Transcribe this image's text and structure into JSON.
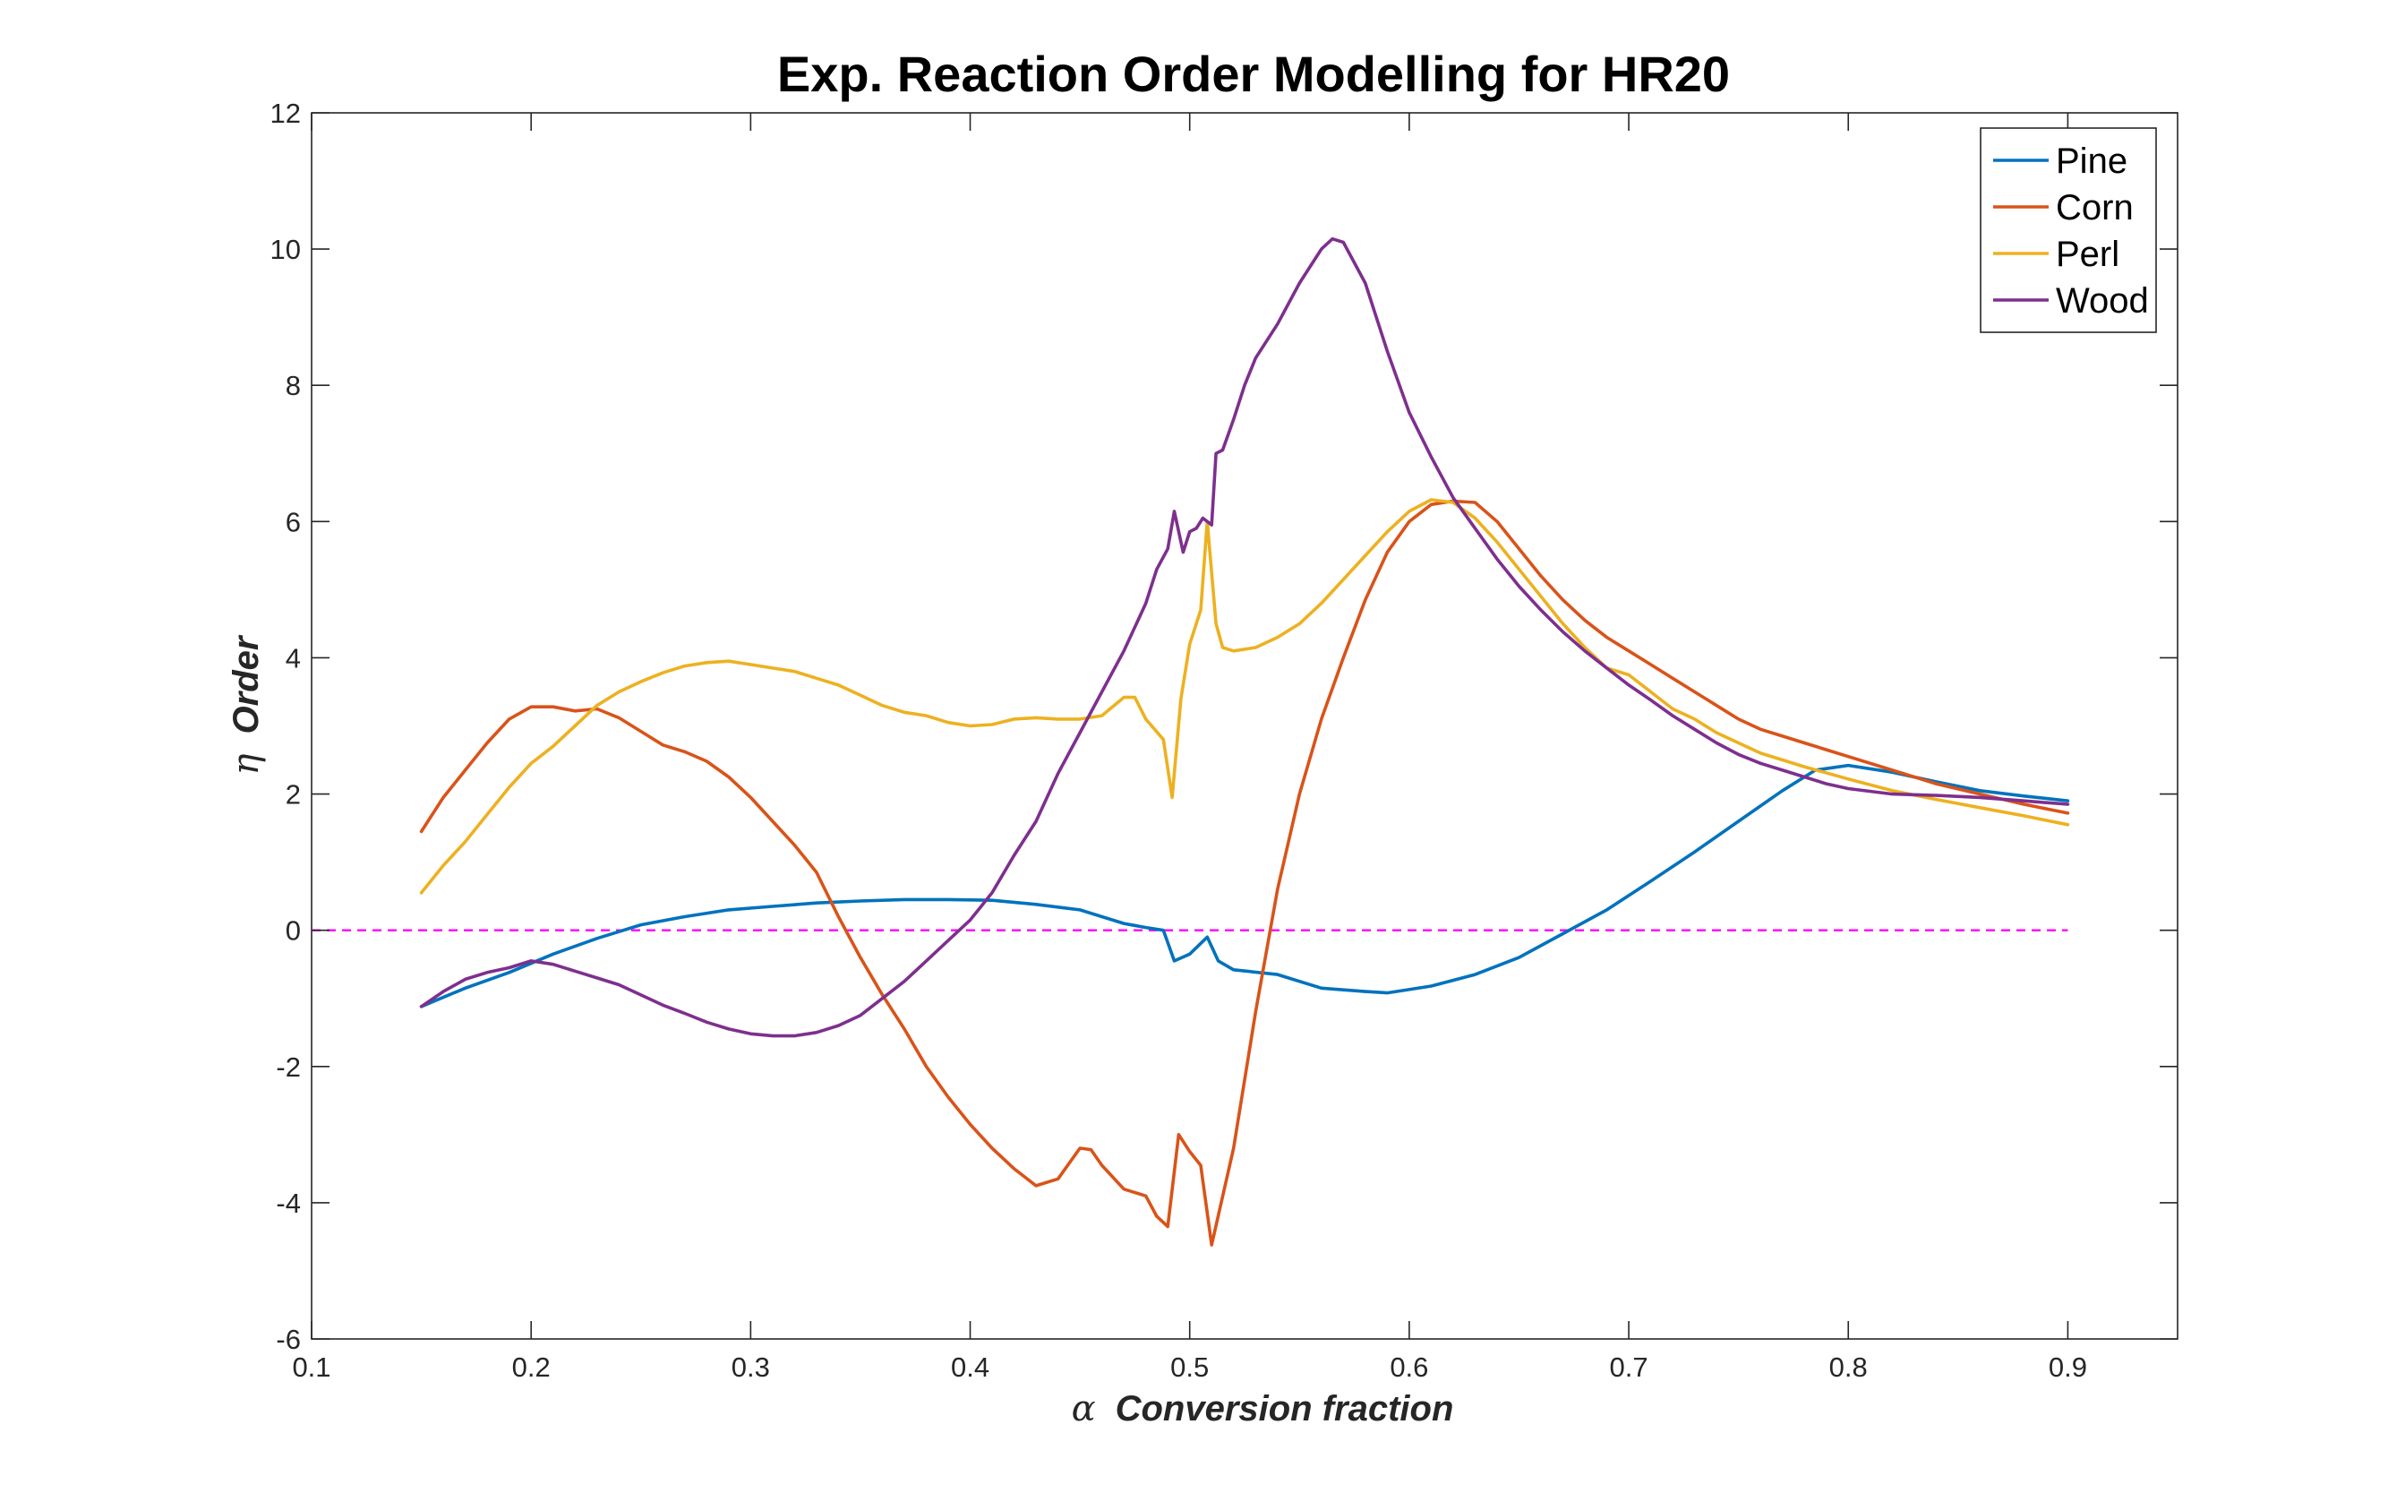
{
  "chart_data": {
    "type": "line",
    "title": "Exp. Reaction Order Modelling for HR20",
    "xlabel_symbol": "α",
    "xlabel": "Conversion fraction",
    "ylabel_symbol": "η",
    "ylabel": "Order",
    "xlim": [
      0.1,
      0.95
    ],
    "ylim": [
      -6,
      12
    ],
    "xticks": [
      0.1,
      0.2,
      0.3,
      0.4,
      0.5,
      0.6,
      0.7,
      0.8,
      0.9
    ],
    "xtick_labels": [
      "0.1",
      "0.2",
      "0.3",
      "0.4",
      "0.5",
      "0.6",
      "0.7",
      "0.8",
      "0.9"
    ],
    "yticks": [
      -6,
      -4,
      -2,
      0,
      2,
      4,
      6,
      8,
      10,
      12
    ],
    "ytick_labels": [
      "-6",
      "-4",
      "-2",
      "0",
      "2",
      "4",
      "6",
      "8",
      "10",
      "12"
    ],
    "grid": false,
    "legend_position": "top-right",
    "reference_line": {
      "y": 0,
      "x": [
        0.1,
        0.9
      ],
      "color": "#ff00ff",
      "style": "dashed"
    },
    "series": [
      {
        "name": "Pine",
        "color": "#0072bd",
        "points": [
          [
            0.15,
            -1.12
          ],
          [
            0.17,
            -0.85
          ],
          [
            0.19,
            -0.62
          ],
          [
            0.21,
            -0.35
          ],
          [
            0.23,
            -0.12
          ],
          [
            0.25,
            0.08
          ],
          [
            0.27,
            0.2
          ],
          [
            0.29,
            0.3
          ],
          [
            0.31,
            0.35
          ],
          [
            0.33,
            0.4
          ],
          [
            0.35,
            0.43
          ],
          [
            0.37,
            0.45
          ],
          [
            0.39,
            0.45
          ],
          [
            0.41,
            0.44
          ],
          [
            0.43,
            0.38
          ],
          [
            0.45,
            0.3
          ],
          [
            0.47,
            0.1
          ],
          [
            0.48,
            0.04
          ],
          [
            0.488,
            0.0
          ],
          [
            0.493,
            -0.45
          ],
          [
            0.5,
            -0.35
          ],
          [
            0.508,
            -0.1
          ],
          [
            0.513,
            -0.45
          ],
          [
            0.52,
            -0.58
          ],
          [
            0.54,
            -0.65
          ],
          [
            0.56,
            -0.85
          ],
          [
            0.58,
            -0.9
          ],
          [
            0.59,
            -0.92
          ],
          [
            0.61,
            -0.82
          ],
          [
            0.63,
            -0.65
          ],
          [
            0.65,
            -0.4
          ],
          [
            0.67,
            -0.05
          ],
          [
            0.69,
            0.3
          ],
          [
            0.71,
            0.72
          ],
          [
            0.73,
            1.15
          ],
          [
            0.75,
            1.6
          ],
          [
            0.77,
            2.05
          ],
          [
            0.785,
            2.35
          ],
          [
            0.8,
            2.42
          ],
          [
            0.82,
            2.32
          ],
          [
            0.84,
            2.18
          ],
          [
            0.86,
            2.05
          ],
          [
            0.88,
            1.97
          ],
          [
            0.9,
            1.9
          ]
        ]
      },
      {
        "name": "Corn",
        "color": "#d95319",
        "points": [
          [
            0.15,
            1.45
          ],
          [
            0.16,
            1.95
          ],
          [
            0.17,
            2.35
          ],
          [
            0.18,
            2.75
          ],
          [
            0.19,
            3.1
          ],
          [
            0.2,
            3.28
          ],
          [
            0.21,
            3.28
          ],
          [
            0.22,
            3.22
          ],
          [
            0.23,
            3.25
          ],
          [
            0.24,
            3.12
          ],
          [
            0.25,
            2.92
          ],
          [
            0.26,
            2.72
          ],
          [
            0.27,
            2.62
          ],
          [
            0.28,
            2.48
          ],
          [
            0.29,
            2.25
          ],
          [
            0.3,
            1.95
          ],
          [
            0.31,
            1.6
          ],
          [
            0.32,
            1.25
          ],
          [
            0.33,
            0.85
          ],
          [
            0.34,
            0.2
          ],
          [
            0.35,
            -0.4
          ],
          [
            0.36,
            -0.95
          ],
          [
            0.37,
            -1.45
          ],
          [
            0.38,
            -2.0
          ],
          [
            0.39,
            -2.45
          ],
          [
            0.4,
            -2.85
          ],
          [
            0.41,
            -3.2
          ],
          [
            0.42,
            -3.5
          ],
          [
            0.43,
            -3.75
          ],
          [
            0.44,
            -3.65
          ],
          [
            0.45,
            -3.2
          ],
          [
            0.455,
            -3.22
          ],
          [
            0.46,
            -3.45
          ],
          [
            0.47,
            -3.8
          ],
          [
            0.48,
            -3.9
          ],
          [
            0.485,
            -4.2
          ],
          [
            0.49,
            -4.35
          ],
          [
            0.495,
            -3.0
          ],
          [
            0.5,
            -3.25
          ],
          [
            0.505,
            -3.45
          ],
          [
            0.51,
            -4.62
          ],
          [
            0.52,
            -3.2
          ],
          [
            0.53,
            -1.2
          ],
          [
            0.54,
            0.6
          ],
          [
            0.55,
            2.0
          ],
          [
            0.56,
            3.1
          ],
          [
            0.57,
            4.0
          ],
          [
            0.58,
            4.85
          ],
          [
            0.59,
            5.55
          ],
          [
            0.6,
            6.0
          ],
          [
            0.61,
            6.25
          ],
          [
            0.62,
            6.3
          ],
          [
            0.63,
            6.28
          ],
          [
            0.64,
            6.0
          ],
          [
            0.65,
            5.6
          ],
          [
            0.66,
            5.2
          ],
          [
            0.67,
            4.85
          ],
          [
            0.68,
            4.55
          ],
          [
            0.69,
            4.3
          ],
          [
            0.7,
            4.1
          ],
          [
            0.71,
            3.9
          ],
          [
            0.72,
            3.7
          ],
          [
            0.73,
            3.5
          ],
          [
            0.74,
            3.3
          ],
          [
            0.75,
            3.1
          ],
          [
            0.76,
            2.95
          ],
          [
            0.77,
            2.85
          ],
          [
            0.78,
            2.75
          ],
          [
            0.79,
            2.65
          ],
          [
            0.8,
            2.55
          ],
          [
            0.82,
            2.35
          ],
          [
            0.84,
            2.15
          ],
          [
            0.86,
            2.0
          ],
          [
            0.88,
            1.85
          ],
          [
            0.9,
            1.72
          ]
        ]
      },
      {
        "name": "Perl",
        "color": "#edb120",
        "points": [
          [
            0.15,
            0.55
          ],
          [
            0.16,
            0.95
          ],
          [
            0.17,
            1.3
          ],
          [
            0.18,
            1.7
          ],
          [
            0.19,
            2.1
          ],
          [
            0.2,
            2.45
          ],
          [
            0.21,
            2.7
          ],
          [
            0.22,
            3.0
          ],
          [
            0.23,
            3.3
          ],
          [
            0.24,
            3.5
          ],
          [
            0.25,
            3.65
          ],
          [
            0.26,
            3.78
          ],
          [
            0.27,
            3.88
          ],
          [
            0.28,
            3.93
          ],
          [
            0.29,
            3.95
          ],
          [
            0.3,
            3.9
          ],
          [
            0.31,
            3.85
          ],
          [
            0.32,
            3.8
          ],
          [
            0.33,
            3.7
          ],
          [
            0.34,
            3.6
          ],
          [
            0.35,
            3.45
          ],
          [
            0.36,
            3.3
          ],
          [
            0.37,
            3.2
          ],
          [
            0.38,
            3.15
          ],
          [
            0.39,
            3.05
          ],
          [
            0.4,
            3.0
          ],
          [
            0.41,
            3.02
          ],
          [
            0.42,
            3.1
          ],
          [
            0.43,
            3.12
          ],
          [
            0.44,
            3.1
          ],
          [
            0.45,
            3.1
          ],
          [
            0.46,
            3.15
          ],
          [
            0.47,
            3.42
          ],
          [
            0.475,
            3.42
          ],
          [
            0.48,
            3.1
          ],
          [
            0.488,
            2.8
          ],
          [
            0.492,
            1.95
          ],
          [
            0.496,
            3.4
          ],
          [
            0.5,
            4.2
          ],
          [
            0.505,
            4.7
          ],
          [
            0.508,
            6.0
          ],
          [
            0.512,
            4.5
          ],
          [
            0.515,
            4.15
          ],
          [
            0.52,
            4.1
          ],
          [
            0.53,
            4.15
          ],
          [
            0.54,
            4.3
          ],
          [
            0.55,
            4.5
          ],
          [
            0.56,
            4.8
          ],
          [
            0.57,
            5.15
          ],
          [
            0.58,
            5.5
          ],
          [
            0.59,
            5.85
          ],
          [
            0.6,
            6.15
          ],
          [
            0.61,
            6.32
          ],
          [
            0.62,
            6.28
          ],
          [
            0.63,
            6.05
          ],
          [
            0.64,
            5.7
          ],
          [
            0.65,
            5.3
          ],
          [
            0.66,
            4.9
          ],
          [
            0.67,
            4.5
          ],
          [
            0.68,
            4.15
          ],
          [
            0.69,
            3.85
          ],
          [
            0.7,
            3.75
          ],
          [
            0.71,
            3.5
          ],
          [
            0.72,
            3.25
          ],
          [
            0.73,
            3.1
          ],
          [
            0.74,
            2.9
          ],
          [
            0.75,
            2.75
          ],
          [
            0.76,
            2.6
          ],
          [
            0.78,
            2.4
          ],
          [
            0.8,
            2.22
          ],
          [
            0.82,
            2.05
          ],
          [
            0.84,
            1.92
          ],
          [
            0.86,
            1.8
          ],
          [
            0.88,
            1.68
          ],
          [
            0.9,
            1.55
          ]
        ]
      },
      {
        "name": "Wood",
        "color": "#7e2f8e",
        "points": [
          [
            0.15,
            -1.12
          ],
          [
            0.16,
            -0.9
          ],
          [
            0.17,
            -0.72
          ],
          [
            0.18,
            -0.62
          ],
          [
            0.19,
            -0.55
          ],
          [
            0.2,
            -0.45
          ],
          [
            0.21,
            -0.5
          ],
          [
            0.22,
            -0.6
          ],
          [
            0.23,
            -0.7
          ],
          [
            0.24,
            -0.8
          ],
          [
            0.25,
            -0.95
          ],
          [
            0.26,
            -1.1
          ],
          [
            0.27,
            -1.22
          ],
          [
            0.28,
            -1.35
          ],
          [
            0.29,
            -1.45
          ],
          [
            0.3,
            -1.52
          ],
          [
            0.31,
            -1.55
          ],
          [
            0.32,
            -1.55
          ],
          [
            0.33,
            -1.5
          ],
          [
            0.34,
            -1.4
          ],
          [
            0.35,
            -1.25
          ],
          [
            0.36,
            -1.0
          ],
          [
            0.37,
            -0.75
          ],
          [
            0.38,
            -0.45
          ],
          [
            0.39,
            -0.15
          ],
          [
            0.4,
            0.15
          ],
          [
            0.41,
            0.55
          ],
          [
            0.42,
            1.1
          ],
          [
            0.43,
            1.6
          ],
          [
            0.44,
            2.3
          ],
          [
            0.45,
            2.9
          ],
          [
            0.46,
            3.5
          ],
          [
            0.47,
            4.1
          ],
          [
            0.48,
            4.8
          ],
          [
            0.485,
            5.3
          ],
          [
            0.49,
            5.6
          ],
          [
            0.493,
            6.15
          ],
          [
            0.497,
            5.55
          ],
          [
            0.5,
            5.85
          ],
          [
            0.503,
            5.9
          ],
          [
            0.506,
            6.05
          ],
          [
            0.51,
            5.95
          ],
          [
            0.512,
            7.0
          ],
          [
            0.515,
            7.05
          ],
          [
            0.52,
            7.5
          ],
          [
            0.525,
            8.0
          ],
          [
            0.53,
            8.4
          ],
          [
            0.54,
            8.9
          ],
          [
            0.55,
            9.5
          ],
          [
            0.56,
            10.0
          ],
          [
            0.565,
            10.15
          ],
          [
            0.57,
            10.1
          ],
          [
            0.58,
            9.5
          ],
          [
            0.59,
            8.5
          ],
          [
            0.6,
            7.6
          ],
          [
            0.61,
            6.95
          ],
          [
            0.62,
            6.35
          ],
          [
            0.63,
            5.9
          ],
          [
            0.64,
            5.45
          ],
          [
            0.65,
            5.05
          ],
          [
            0.66,
            4.7
          ],
          [
            0.67,
            4.38
          ],
          [
            0.68,
            4.1
          ],
          [
            0.69,
            3.85
          ],
          [
            0.7,
            3.6
          ],
          [
            0.71,
            3.38
          ],
          [
            0.72,
            3.15
          ],
          [
            0.73,
            2.95
          ],
          [
            0.74,
            2.75
          ],
          [
            0.75,
            2.58
          ],
          [
            0.76,
            2.45
          ],
          [
            0.77,
            2.35
          ],
          [
            0.78,
            2.25
          ],
          [
            0.79,
            2.15
          ],
          [
            0.8,
            2.08
          ],
          [
            0.82,
            2.0
          ],
          [
            0.84,
            1.98
          ],
          [
            0.86,
            1.95
          ],
          [
            0.88,
            1.9
          ],
          [
            0.9,
            1.85
          ]
        ]
      }
    ]
  }
}
